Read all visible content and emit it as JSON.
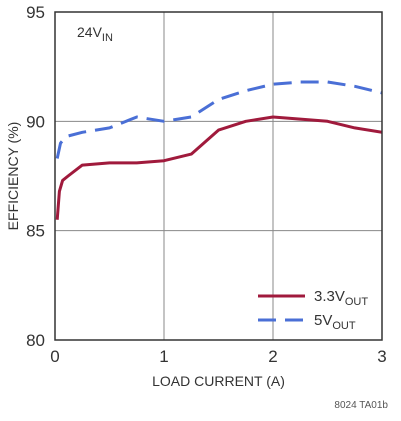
{
  "chart_data": {
    "type": "line",
    "title": "",
    "annotation": {
      "main": "24V",
      "sub": "IN"
    },
    "xlabel": "LOAD CURRENT (A)",
    "ylabel": "EFFICIENCY (%)",
    "xlim": [
      0,
      3
    ],
    "ylim": [
      80,
      95
    ],
    "xticks": [
      0,
      1,
      2,
      3
    ],
    "xtick_labels": [
      "0",
      "1",
      "2",
      "3"
    ],
    "yticks": [
      80,
      85,
      90,
      95
    ],
    "ytick_labels": [
      "80",
      "85",
      "90",
      "95"
    ],
    "grid": true,
    "legend_position": "bottom-right",
    "series": [
      {
        "name_main": "3.3V",
        "name_sub": "OUT",
        "color": "#a01a3c",
        "dash": "solid",
        "x": [
          0.02,
          0.04,
          0.07,
          0.12,
          0.25,
          0.5,
          0.75,
          1.0,
          1.25,
          1.5,
          1.75,
          2.0,
          2.25,
          2.5,
          2.75,
          3.0
        ],
        "y": [
          85.5,
          86.8,
          87.3,
          87.5,
          88.0,
          88.1,
          88.1,
          88.2,
          88.5,
          89.6,
          90.0,
          90.2,
          90.1,
          90.0,
          89.7,
          89.5
        ]
      },
      {
        "name_main": "5V",
        "name_sub": "OUT",
        "color": "#4a6fd6",
        "dash": "dashed",
        "x": [
          0.02,
          0.05,
          0.1,
          0.25,
          0.5,
          0.75,
          1.0,
          1.25,
          1.5,
          1.75,
          2.0,
          2.25,
          2.5,
          2.75,
          3.0
        ],
        "y": [
          88.3,
          89.0,
          89.3,
          89.5,
          89.7,
          90.2,
          90.0,
          90.2,
          91.0,
          91.4,
          91.7,
          91.8,
          91.8,
          91.6,
          91.3
        ]
      }
    ],
    "footnote": "8024 TA01b"
  }
}
